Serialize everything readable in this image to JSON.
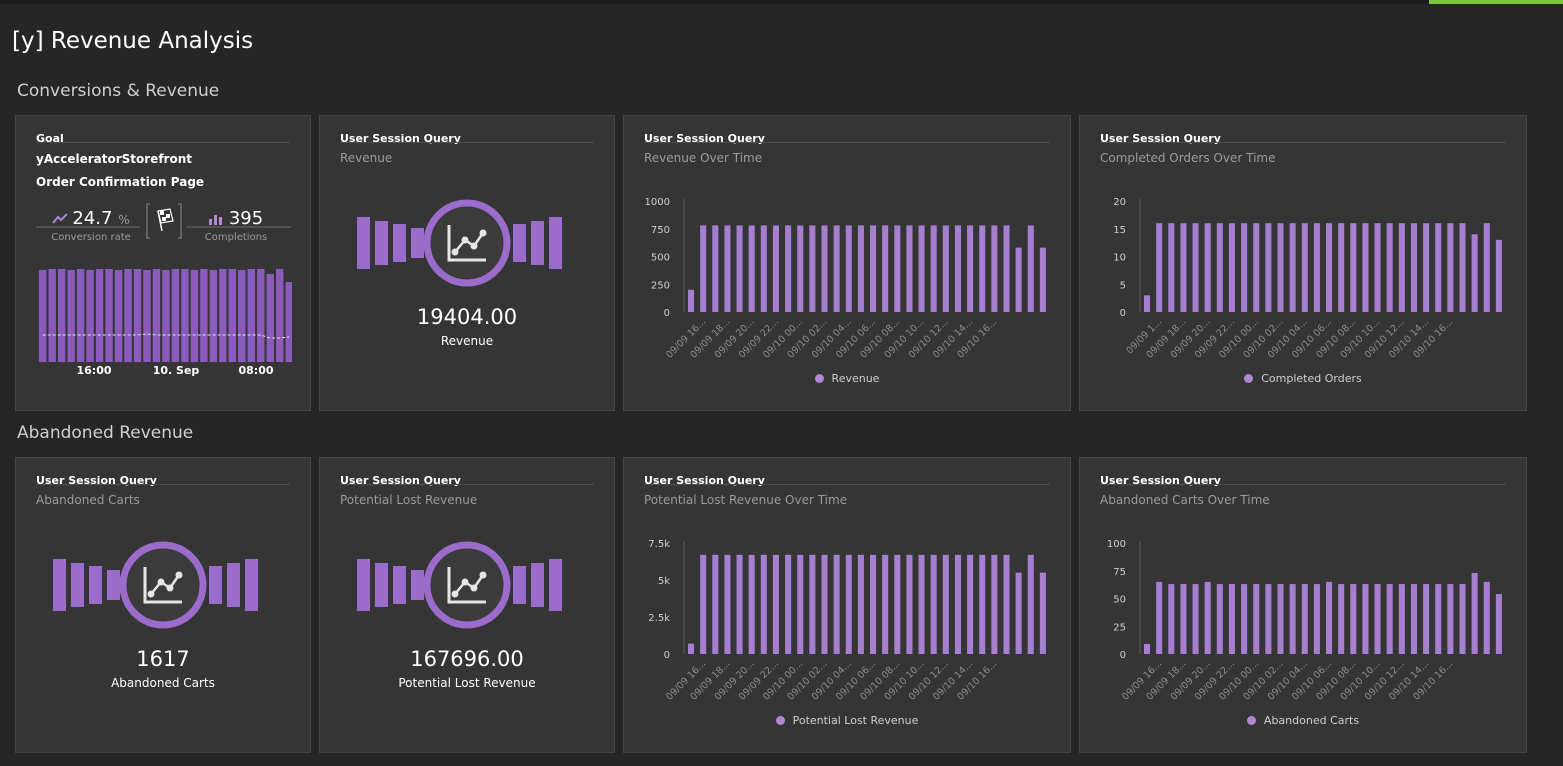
{
  "dashboard": {
    "title": "[y] Revenue Analysis"
  },
  "sections": {
    "conversions": "Conversions & Revenue",
    "abandoned": "Abandoned Revenue"
  },
  "colors": {
    "accent": "#7dc540",
    "bar": "#a67fd0",
    "tile": "#353535",
    "background": "#262626"
  },
  "tiles": {
    "goal": {
      "type": "Goal",
      "name_line1": "yAcceleratorStorefront",
      "name_line2": "Order Confirmation Page",
      "conversion_rate": "24.7",
      "conversion_unit": "%",
      "conversion_label": "Conversion rate",
      "completions": "395",
      "completions_label": "Completions",
      "icons": {
        "rate": "trend-line-icon",
        "goal": "checkered-flag-icon",
        "completions": "bar-chart-icon"
      },
      "chart_data": {
        "type": "bar",
        "values": [
          0.92,
          0.93,
          0.93,
          0.92,
          0.93,
          0.92,
          0.93,
          0.93,
          0.92,
          0.93,
          0.93,
          0.92,
          0.93,
          0.92,
          0.93,
          0.93,
          0.92,
          0.93,
          0.92,
          0.93,
          0.93,
          0.92,
          0.93,
          0.93,
          0.88,
          0.93,
          0.8
        ],
        "baseline": [
          0.27,
          0.27,
          0.27,
          0.27,
          0.27,
          0.27,
          0.27,
          0.27,
          0.27,
          0.27,
          0.27,
          0.28,
          0.27,
          0.27,
          0.27,
          0.27,
          0.27,
          0.27,
          0.27,
          0.27,
          0.27,
          0.27,
          0.27,
          0.27,
          0.24,
          0.24,
          0.25
        ],
        "xticks": [
          "16:00",
          "10. Sep",
          "08:00"
        ]
      }
    },
    "revenue": {
      "type": "User Session Query",
      "subtitle": "Revenue",
      "value": "19404.00",
      "label": "Revenue",
      "icon": "line-chart-icon"
    },
    "revenue_over_time": {
      "type": "User Session Query",
      "subtitle": "Revenue Over Time",
      "chart_data": {
        "type": "bar",
        "series": [
          {
            "name": "Revenue",
            "values": [
              200,
              780,
              780,
              780,
              780,
              780,
              780,
              780,
              780,
              780,
              780,
              780,
              780,
              780,
              780,
              780,
              780,
              780,
              780,
              780,
              780,
              780,
              780,
              780,
              780,
              780,
              780,
              580,
              780,
              580
            ]
          }
        ],
        "yticks": [
          "0",
          "250",
          "500",
          "750",
          "1000"
        ],
        "ylim": [
          0,
          1000
        ],
        "xticks": [
          "09/09 16...",
          "09/09 18...",
          "09/09 20...",
          "09/09 22...",
          "09/10 00...",
          "09/10 02...",
          "09/10 04...",
          "09/10 06...",
          "09/10 08...",
          "09/10 10...",
          "09/10 12...",
          "09/10 14...",
          "09/10 16..."
        ]
      }
    },
    "completed_orders_over_time": {
      "type": "User Session Query",
      "subtitle": "Completed Orders Over Time",
      "chart_data": {
        "type": "bar",
        "series": [
          {
            "name": "Completed Orders",
            "values": [
              3,
              16,
              16,
              16,
              16,
              16,
              16,
              16,
              16,
              16,
              16,
              16,
              16,
              16,
              16,
              16,
              16,
              16,
              16,
              16,
              16,
              16,
              16,
              16,
              16,
              16,
              16,
              14,
              16,
              13
            ]
          }
        ],
        "yticks": [
          "0",
          "5",
          "10",
          "15",
          "20"
        ],
        "ylim": [
          0,
          20
        ],
        "xticks": [
          "09/09 1...",
          "09/09 18...",
          "09/09 20...",
          "09/09 22...",
          "09/10 00...",
          "09/10 02...",
          "09/10 04...",
          "09/10 06...",
          "09/10 08...",
          "09/10 10...",
          "09/10 12...",
          "09/10 14...",
          "09/10 16..."
        ]
      }
    },
    "abandoned_carts": {
      "type": "User Session Query",
      "subtitle": "Abandoned Carts",
      "value": "1617",
      "label": "Abandoned Carts",
      "icon": "line-chart-icon"
    },
    "potential_lost_revenue": {
      "type": "User Session Query",
      "subtitle": "Potential Lost Revenue",
      "value": "167696.00",
      "label": "Potential Lost Revenue",
      "icon": "line-chart-icon"
    },
    "potential_lost_revenue_over_time": {
      "type": "User Session Query",
      "subtitle": "Potential Lost Revenue Over Time",
      "chart_data": {
        "type": "bar",
        "series": [
          {
            "name": "Potential Lost Revenue",
            "values": [
              700,
              6700,
              6700,
              6700,
              6700,
              6700,
              6700,
              6700,
              6700,
              6700,
              6700,
              6700,
              6700,
              6700,
              6700,
              6700,
              6700,
              6700,
              6700,
              6700,
              6700,
              6700,
              6700,
              6700,
              6700,
              6700,
              6700,
              5500,
              6700,
              5500
            ]
          }
        ],
        "yticks": [
          "0",
          "2.5k",
          "5k",
          "7.5k"
        ],
        "ylim": [
          0,
          7500
        ],
        "xticks": [
          "09/09 16...",
          "09/09 18...",
          "09/09 20...",
          "09/09 22...",
          "09/10 00...",
          "09/10 02...",
          "09/10 04...",
          "09/10 06...",
          "09/10 08...",
          "09/10 10...",
          "09/10 12...",
          "09/10 14...",
          "09/10 16..."
        ]
      }
    },
    "abandoned_carts_over_time": {
      "type": "User Session Query",
      "subtitle": "Abandoned Carts Over Time",
      "chart_data": {
        "type": "bar",
        "series": [
          {
            "name": "Abandoned Carts",
            "values": [
              9,
              65,
              63,
              63,
              63,
              65,
              63,
              63,
              63,
              63,
              63,
              63,
              63,
              63,
              63,
              65,
              63,
              63,
              63,
              63,
              63,
              63,
              63,
              63,
              63,
              63,
              63,
              73,
              65,
              54
            ]
          }
        ],
        "yticks": [
          "0",
          "25",
          "50",
          "75",
          "100"
        ],
        "ylim": [
          0,
          100
        ],
        "xticks": [
          "09/09 16...",
          "09/09 18...",
          "09/09 20...",
          "09/09 22...",
          "09/10 00...",
          "09/10 02...",
          "09/10 04...",
          "09/10 06...",
          "09/10 08...",
          "09/10 10...",
          "09/10 12...",
          "09/10 14...",
          "09/10 16..."
        ]
      }
    }
  }
}
